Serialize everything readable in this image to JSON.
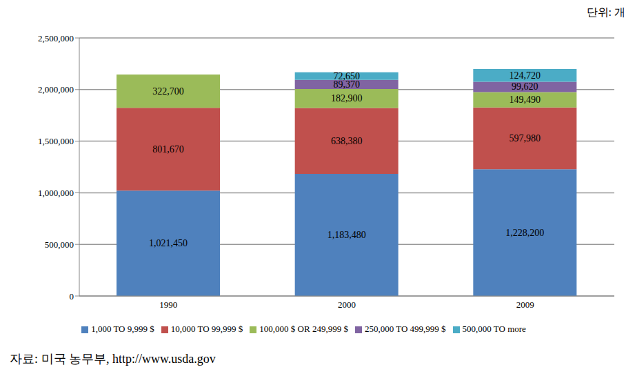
{
  "chart_data": {
    "type": "bar",
    "stacked": true,
    "data_labels": true,
    "grid": true,
    "legend": "bottom",
    "annotations": [
      "단위: 개",
      "자료: 미국 농무부, http://www.usda.gov"
    ],
    "categories": [
      "1990",
      "2000",
      "2009"
    ],
    "series": [
      {
        "name": "1,000 TO 9,999 $",
        "color": "#4f81bd",
        "values": [
          1021450,
          1183480,
          1228200
        ],
        "value_labels": [
          "1,021,450",
          "1,183,480",
          "1,228,200"
        ]
      },
      {
        "name": "10,000 TO 99,999 $",
        "color": "#c0504d",
        "values": [
          801670,
          638380,
          597980
        ],
        "value_labels": [
          "801,670",
          "638,380",
          "597,980"
        ]
      },
      {
        "name": "100,000 $ OR 249,999 $",
        "color": "#9bbb59",
        "values": [
          322700,
          182900,
          149490
        ],
        "value_labels": [
          "322,700",
          "182,900",
          "149,490"
        ]
      },
      {
        "name": "250,000 TO 499,999 $",
        "color": "#8064a2",
        "values": [
          null,
          89370,
          99620
        ],
        "value_labels": [
          null,
          "89,370",
          "99,620"
        ]
      },
      {
        "name": "500,000 TO more",
        "color": "#4bacc6",
        "values": [
          null,
          72650,
          124720
        ],
        "value_labels": [
          null,
          "72,650",
          "124,720"
        ]
      }
    ],
    "ylim": [
      0,
      2500000
    ],
    "yticks": [
      0,
      {
        "value": 500000,
        "label": "500,000"
      },
      {
        "value": 1000000,
        "label": "1,000,000"
      },
      {
        "value": 1500000,
        "label": "1,500,000"
      },
      {
        "value": 2000000,
        "label": "2,000,000"
      },
      {
        "value": 2500000,
        "label": "2,500,000"
      }
    ]
  }
}
